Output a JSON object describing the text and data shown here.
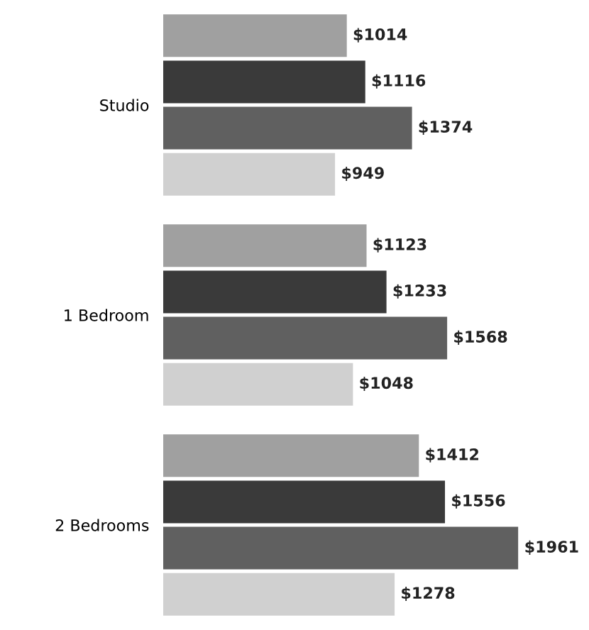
{
  "chart_data": {
    "type": "bar",
    "orientation": "horizontal",
    "categories": [
      "Studio",
      "1 Bedroom",
      "2 Bedrooms"
    ],
    "tick_labels": "y",
    "series": [
      {
        "color": "#a0a0a0",
        "values": [
          1014,
          1123,
          1412
        ],
        "value_labels": [
          "$1014",
          "$1123",
          "$1412"
        ]
      },
      {
        "color": "#3a3a3a",
        "values": [
          1116,
          1233,
          1556
        ],
        "value_labels": [
          "$1116",
          "$1233",
          "$1556"
        ]
      },
      {
        "color": "#606060",
        "values": [
          1374,
          1568,
          1961
        ],
        "value_labels": [
          "$1374",
          "$1568",
          "$1961"
        ]
      },
      {
        "color": "#d0d0d0",
        "values": [
          949,
          1048,
          1278
        ],
        "value_labels": [
          "$949",
          "$1048",
          "$1278"
        ]
      }
    ]
  }
}
